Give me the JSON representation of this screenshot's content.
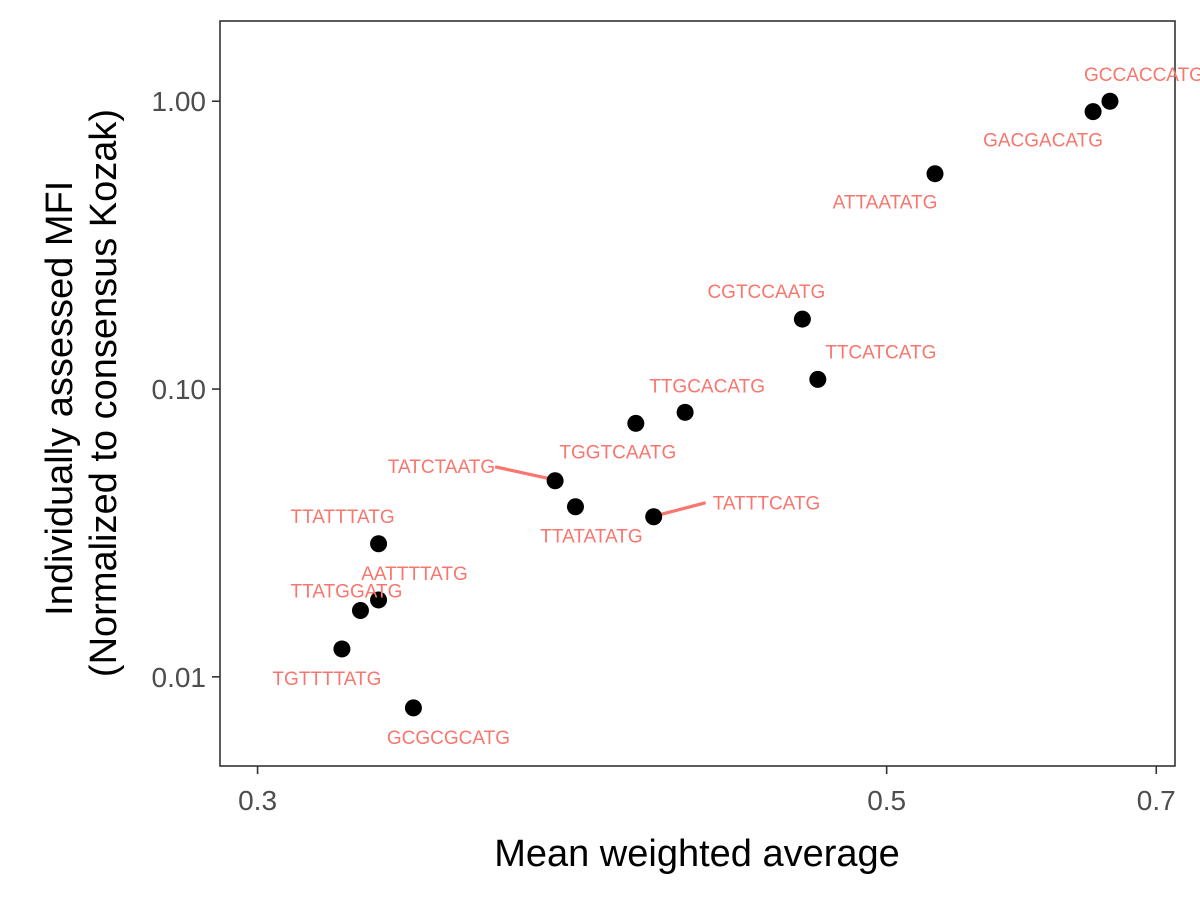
{
  "chart_data": {
    "type": "scatter",
    "xlabel": "Mean weighted average",
    "ylabel_lines": [
      "Individually assessed MFI",
      "(Normalized to consensus Kozak)"
    ],
    "x_scale": "reciprocal",
    "y_scale": "log10",
    "xlim": [
      0.293,
      0.72
    ],
    "ylim": [
      0.0049,
      1.9
    ],
    "x_ticks": [
      0.3,
      0.5,
      0.7
    ],
    "x_tick_labels": [
      "0.3",
      "0.5",
      "0.7"
    ],
    "y_ticks": [
      0.01,
      0.1,
      1.0
    ],
    "y_tick_labels": [
      "0.01",
      "0.10",
      "1.00"
    ],
    "grid": false,
    "point_color": "#000000",
    "label_color": "#f8766d",
    "points": [
      {
        "x": 0.655,
        "y": 1.0,
        "label": "GCCACCATG"
      },
      {
        "x": 0.64,
        "y": 0.92,
        "label": "GACGACATG"
      },
      {
        "x": 0.527,
        "y": 0.56,
        "label": "ATTAATATG"
      },
      {
        "x": 0.459,
        "y": 0.175,
        "label": "CGTCCAATG"
      },
      {
        "x": 0.466,
        "y": 0.108,
        "label": "TTCATCATG"
      },
      {
        "x": 0.412,
        "y": 0.083,
        "label": "TTGCACATG"
      },
      {
        "x": 0.395,
        "y": 0.076,
        "label": "TGGTCAATG"
      },
      {
        "x": 0.37,
        "y": 0.048,
        "label": "TATCTAATG"
      },
      {
        "x": 0.376,
        "y": 0.039,
        "label": "TTATATATG"
      },
      {
        "x": 0.401,
        "y": 0.036,
        "label": "TATTTCATG"
      },
      {
        "x": 0.325,
        "y": 0.029,
        "label": "TTATTTATG"
      },
      {
        "x": 0.325,
        "y": 0.0185,
        "label": "AATTTTATG"
      },
      {
        "x": 0.321,
        "y": 0.017,
        "label": "TTATGGATG"
      },
      {
        "x": 0.317,
        "y": 0.0125,
        "label": "TGTTTTATG"
      },
      {
        "x": 0.333,
        "y": 0.0078,
        "label": "GCGCGCATG"
      }
    ]
  }
}
